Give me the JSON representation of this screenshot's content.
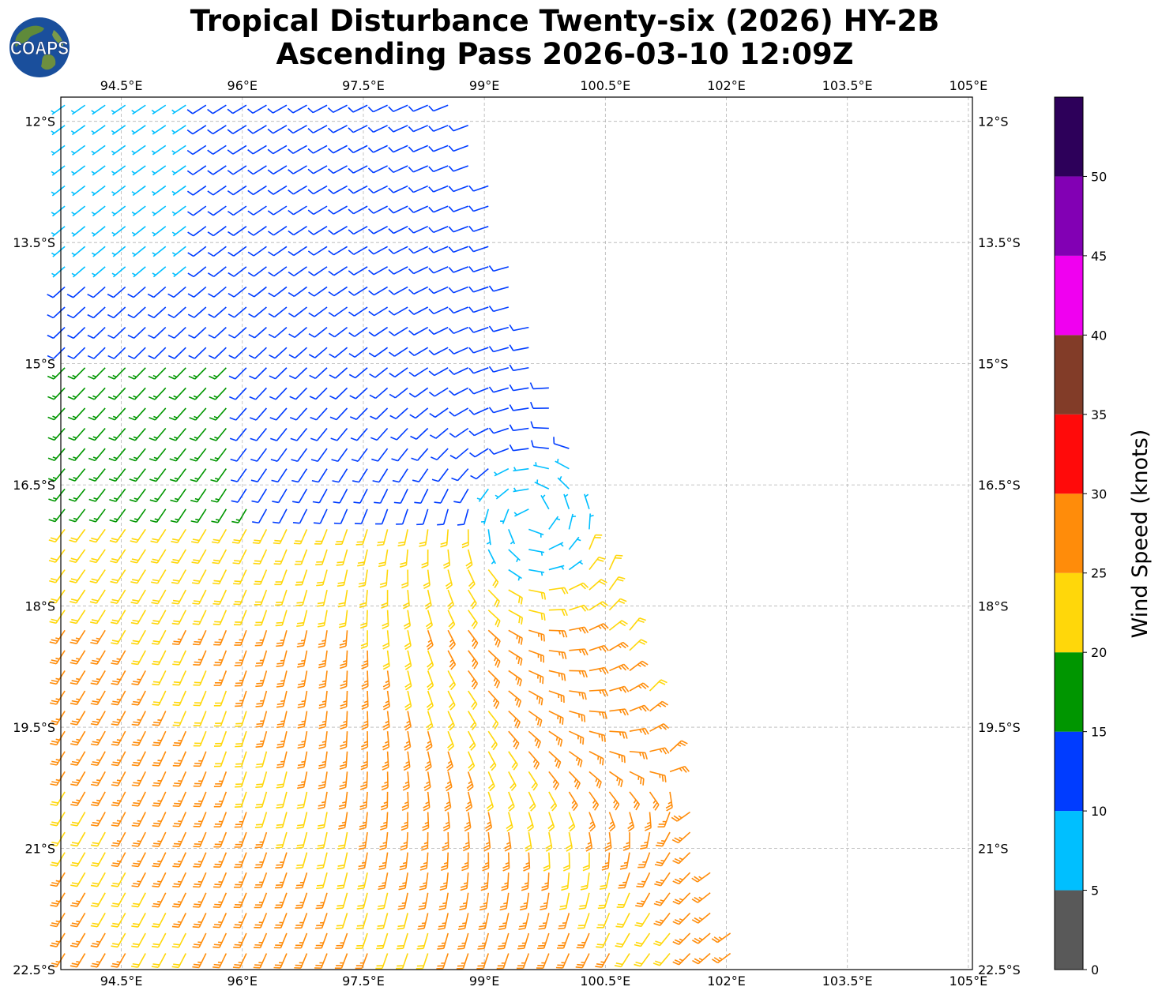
{
  "title": {
    "line1": "Tropical Disturbance Twenty-six (2026) HY-2B",
    "line2": "Ascending Pass 2026-03-10 12:09Z"
  },
  "logo": {
    "text": "COAPS",
    "icon": "globe-icon"
  },
  "map": {
    "lon_range": [
      93.75,
      105.05
    ],
    "lat_range": [
      -22.5,
      -11.7
    ],
    "lon_ticks": [
      94.5,
      96,
      97.5,
      99,
      100.5,
      102,
      103.5,
      105
    ],
    "lon_tick_labels": [
      "94.5°E",
      "96°E",
      "97.5°E",
      "99°E",
      "100.5°E",
      "102°E",
      "103.5°E",
      "105°E"
    ],
    "lat_ticks": [
      -12,
      -13.5,
      -15,
      -16.5,
      -18,
      -19.5,
      -21,
      -22.5
    ],
    "lat_tick_labels": [
      "12°S",
      "13.5°S",
      "15°S",
      "16.5°S",
      "18°S",
      "19.5°S",
      "21°S",
      "22.5°S"
    ],
    "gridlines": true,
    "swath_right_edge_lon": [
      [
        -11.7,
        98.7
      ],
      [
        -22.5,
        102.2
      ]
    ],
    "circulation_center": {
      "lon": 99.6,
      "lat": -16.9
    },
    "barb_spacing_deg": 0.25
  },
  "colorbar": {
    "label": "Wind Speed (knots)",
    "ticks": [
      "0",
      "5",
      "10",
      "15",
      "20",
      "25",
      "30",
      "35",
      "40",
      "45",
      "50"
    ],
    "bins": [
      {
        "min": 0,
        "max": 5,
        "color": "#595959"
      },
      {
        "min": 5,
        "max": 10,
        "color": "#00bfff"
      },
      {
        "min": 10,
        "max": 15,
        "color": "#003cff"
      },
      {
        "min": 15,
        "max": 20,
        "color": "#009600"
      },
      {
        "min": 20,
        "max": 25,
        "color": "#ffd70a"
      },
      {
        "min": 25,
        "max": 30,
        "color": "#ff8c0a"
      },
      {
        "min": 30,
        "max": 35,
        "color": "#ff0a0a"
      },
      {
        "min": 35,
        "max": 40,
        "color": "#823c28"
      },
      {
        "min": 40,
        "max": 45,
        "color": "#f000f0"
      },
      {
        "min": 45,
        "max": 50,
        "color": "#8200b4"
      },
      {
        "min": 50,
        "max": 55,
        "color": "#2d005a"
      }
    ]
  }
}
